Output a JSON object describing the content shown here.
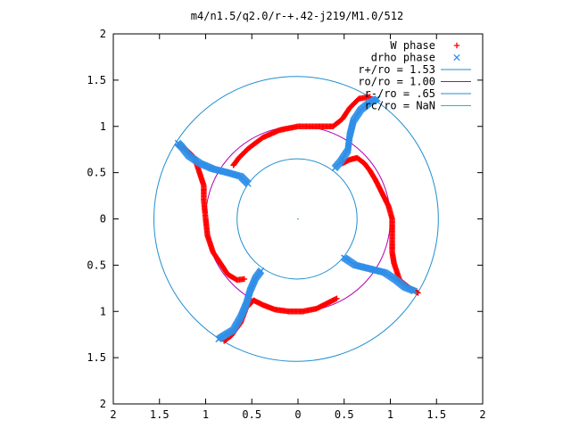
{
  "chart_data": {
    "type": "scatter",
    "title": "m4/n1.5/q2.0/r-+.42-j219/M1.0/512",
    "xlabel": "",
    "ylabel": "",
    "xlim": [
      -2,
      2
    ],
    "ylim": [
      -2,
      2
    ],
    "x_ticks": [
      -2,
      -1.5,
      -1,
      -0.5,
      0,
      0.5,
      1,
      1.5,
      2
    ],
    "y_ticks": [
      -2,
      -1.5,
      -1,
      -0.5,
      0,
      0.5,
      1,
      1.5,
      2
    ],
    "x_tick_labels": [
      "2",
      "1.5",
      "1",
      "0.5",
      "0",
      "0.5",
      "1",
      "1.5",
      "2"
    ],
    "y_tick_labels": [
      "2",
      "1.5",
      "1",
      "0.5",
      "0",
      "0.5",
      "1",
      "1.5",
      "2"
    ],
    "grid": false,
    "legend_position": "top-right",
    "series": [
      {
        "name": "W phase",
        "marker": "plus",
        "color": "#ff0000",
        "polylines": [
          [
            [
              0.48,
              0.6
            ],
            [
              0.56,
              0.64
            ],
            [
              0.64,
              0.66
            ],
            [
              0.72,
              0.6
            ],
            [
              0.78,
              0.52
            ],
            [
              0.84,
              0.42
            ],
            [
              0.9,
              0.3
            ],
            [
              0.98,
              0.14
            ],
            [
              1.02,
              0.0
            ],
            [
              1.02,
              -0.2
            ],
            [
              1.02,
              -0.36
            ],
            [
              1.04,
              -0.48
            ],
            [
              1.1,
              -0.66
            ],
            [
              1.2,
              -0.74
            ],
            [
              1.3,
              -0.8
            ]
          ],
          [
            [
              0.42,
              -0.86
            ],
            [
              0.34,
              -0.9
            ],
            [
              0.2,
              -0.97
            ],
            [
              0.05,
              -1.0
            ],
            [
              -0.1,
              -1.0
            ],
            [
              -0.25,
              -0.98
            ],
            [
              -0.38,
              -0.93
            ],
            [
              -0.48,
              -0.88
            ],
            [
              -0.56,
              -0.96
            ],
            [
              -0.62,
              -1.12
            ],
            [
              -0.72,
              -1.26
            ],
            [
              -0.8,
              -1.32
            ]
          ],
          [
            [
              -0.58,
              -0.65
            ],
            [
              -0.66,
              -0.66
            ],
            [
              -0.76,
              -0.6
            ],
            [
              -0.84,
              -0.48
            ],
            [
              -0.92,
              -0.36
            ],
            [
              -0.98,
              -0.18
            ],
            [
              -1.0,
              0.0
            ],
            [
              -1.02,
              0.2
            ],
            [
              -1.02,
              0.36
            ],
            [
              -1.06,
              0.48
            ],
            [
              -1.12,
              0.66
            ],
            [
              -1.2,
              0.74
            ],
            [
              -1.3,
              0.8
            ]
          ],
          [
            [
              -0.7,
              0.58
            ],
            [
              -0.64,
              0.66
            ],
            [
              -0.54,
              0.76
            ],
            [
              -0.38,
              0.88
            ],
            [
              -0.2,
              0.96
            ],
            [
              0.0,
              1.0
            ],
            [
              0.2,
              1.0
            ],
            [
              0.38,
              1.0
            ],
            [
              0.48,
              1.08
            ],
            [
              0.56,
              1.2
            ],
            [
              0.66,
              1.3
            ],
            [
              0.78,
              1.32
            ]
          ]
        ]
      },
      {
        "name": "drho phase",
        "marker": "cross",
        "color": "#2f8fe8",
        "polylines": [
          [
            [
              0.4,
              0.55
            ],
            [
              0.46,
              0.62
            ],
            [
              0.54,
              0.74
            ],
            [
              0.56,
              0.9
            ],
            [
              0.6,
              1.06
            ],
            [
              0.68,
              1.18
            ],
            [
              0.78,
              1.26
            ],
            [
              0.86,
              1.3
            ]
          ],
          [
            [
              0.5,
              -0.42
            ],
            [
              0.62,
              -0.5
            ],
            [
              0.78,
              -0.54
            ],
            [
              0.94,
              -0.58
            ],
            [
              1.06,
              -0.66
            ],
            [
              1.16,
              -0.74
            ],
            [
              1.26,
              -0.78
            ]
          ],
          [
            [
              -0.4,
              -0.56
            ],
            [
              -0.46,
              -0.64
            ],
            [
              -0.52,
              -0.78
            ],
            [
              -0.56,
              -0.92
            ],
            [
              -0.62,
              -1.06
            ],
            [
              -0.7,
              -1.2
            ],
            [
              -0.8,
              -1.26
            ],
            [
              -0.86,
              -1.3
            ]
          ],
          [
            [
              -0.54,
              0.38
            ],
            [
              -0.62,
              0.46
            ],
            [
              -0.76,
              0.5
            ],
            [
              -0.92,
              0.54
            ],
            [
              -1.06,
              0.6
            ],
            [
              -1.18,
              0.68
            ],
            [
              -1.26,
              0.78
            ],
            [
              -1.3,
              0.82
            ]
          ]
        ]
      },
      {
        "name": "r+/ro = 1.53",
        "type": "circle",
        "color": "#1f8fd0",
        "center": [
          -0.02,
          0.0
        ],
        "radius": 1.54
      },
      {
        "name": "ro/ro = 1.00",
        "type": "circle",
        "color": "#b000b0",
        "center": [
          0.0,
          0.0
        ],
        "radius": 1.0
      },
      {
        "name": "r-/ro = .65",
        "type": "circle",
        "color": "#1f8fd0",
        "center": [
          -0.01,
          0.0
        ],
        "radius": 0.65
      },
      {
        "name": "rc/ro = NaN",
        "type": "empty",
        "color": "#00c8d8"
      }
    ]
  }
}
